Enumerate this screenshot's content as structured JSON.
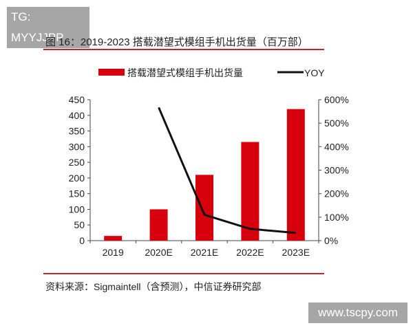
{
  "watermarks": {
    "top_left": "TG: MYYJJPP",
    "bottom_right": "www.tscpy.com"
  },
  "figure_title": "图 16：2019-2023 搭载潜望式模组手机出货量（百万部）",
  "source": "资料来源：Sigmaintell（含预测），中信证券研究部",
  "colors": {
    "bar": "#d9000d",
    "line": "#111111",
    "rule": "#c8262c"
  },
  "chart_data": {
    "type": "bar+line",
    "categories": [
      "2019",
      "2020E",
      "2021E",
      "2022E",
      "2023E"
    ],
    "series": [
      {
        "name": "搭载潜望式模组手机出货量",
        "type": "bar",
        "axis": "left",
        "values": [
          15,
          100,
          210,
          315,
          420
        ]
      },
      {
        "name": "YOY",
        "type": "line",
        "axis": "right",
        "values": [
          null,
          567,
          110,
          50,
          33
        ]
      }
    ],
    "left_axis": {
      "range": [
        0,
        450
      ],
      "ticks": [
        0,
        50,
        100,
        150,
        200,
        250,
        300,
        350,
        400,
        450
      ]
    },
    "right_axis": {
      "range": [
        0,
        600
      ],
      "unit": "%",
      "ticks": [
        "0%",
        "100%",
        "200%",
        "300%",
        "400%",
        "500%",
        "600%"
      ]
    },
    "legend": "top-center",
    "grid": false
  }
}
